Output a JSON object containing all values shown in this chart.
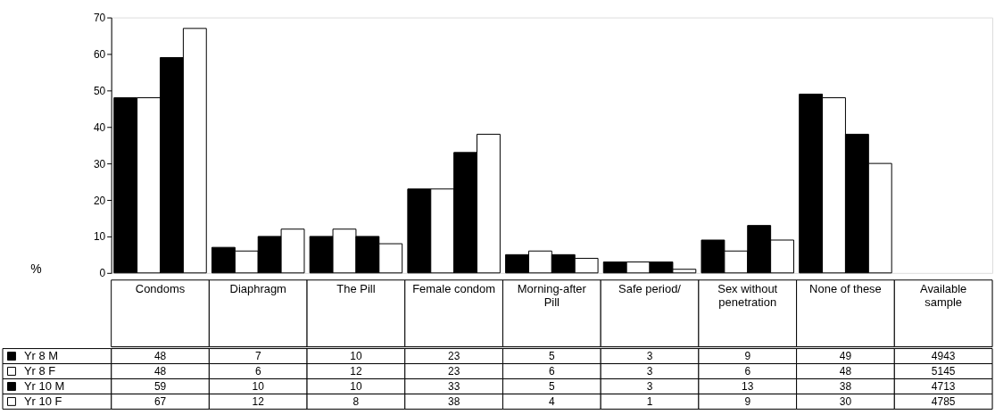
{
  "chart_data": {
    "type": "bar",
    "ylabel": "%",
    "categories": [
      "Condoms",
      "Diaphragm",
      "The Pill",
      "Female condom",
      "Morning-after Pill",
      "Safe period/",
      "Sex without penetration",
      "None of these"
    ],
    "series": [
      {
        "name": "Yr 8 M",
        "color": "#000000",
        "values": [
          48,
          7,
          10,
          23,
          5,
          3,
          9,
          49
        ]
      },
      {
        "name": "Yr 8 F",
        "color": "#ffffff",
        "values": [
          48,
          6,
          12,
          23,
          6,
          3,
          6,
          48
        ]
      },
      {
        "name": "Yr 10 M",
        "color": "#000000",
        "values": [
          59,
          10,
          10,
          33,
          5,
          3,
          13,
          38
        ]
      },
      {
        "name": "Yr 10 F",
        "color": "#ffffff",
        "values": [
          67,
          12,
          8,
          38,
          4,
          1,
          9,
          30
        ]
      }
    ],
    "ylim": [
      0,
      70
    ],
    "yticks": [
      0,
      10,
      20,
      30,
      40,
      50,
      60,
      70
    ],
    "grid": false,
    "legend": "bottom left",
    "data_labels": true,
    "annotations": [
      "Available sample",
      "4943",
      "5145",
      "4713",
      "4785"
    ]
  }
}
